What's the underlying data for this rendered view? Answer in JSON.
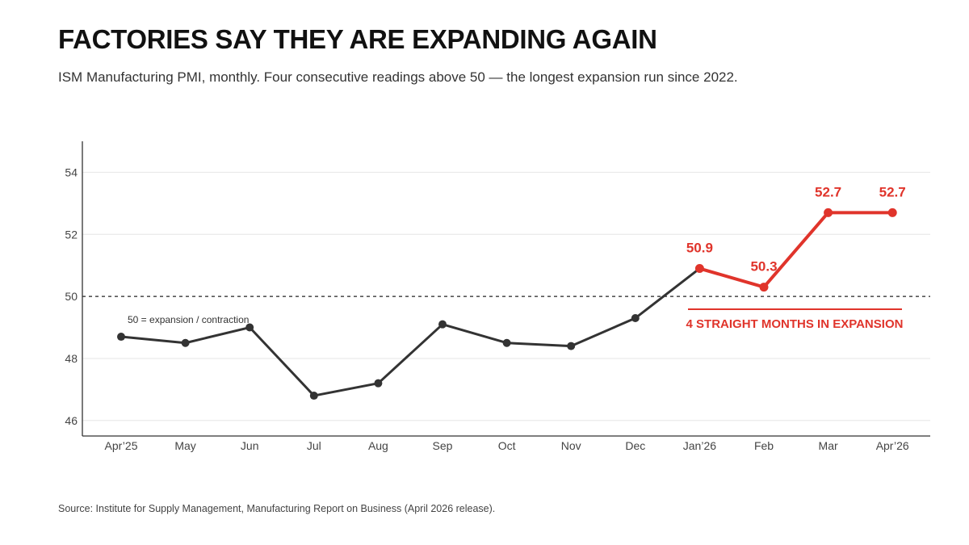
{
  "header": {
    "title": "FACTORIES SAY THEY ARE EXPANDING AGAIN",
    "subtitle": "ISM Manufacturing PMI, monthly. Four consecutive readings above 50 — the longest expansion run since 2022."
  },
  "footer": {
    "source": "Source: Institute for Supply Management, Manufacturing Report on Business (April 2026 release)."
  },
  "colors": {
    "base_line": "#333333",
    "highlight": "#e0342b",
    "grid": "#e6e6e6",
    "axis": "#333333"
  },
  "chart_data": {
    "type": "line",
    "categories": [
      "Apr’25",
      "May",
      "Jun",
      "Jul",
      "Aug",
      "Sep",
      "Oct",
      "Nov",
      "Dec",
      "Jan’26",
      "Feb",
      "Mar",
      "Apr’26"
    ],
    "values": [
      48.7,
      48.5,
      49.0,
      46.8,
      47.2,
      49.1,
      48.5,
      48.4,
      49.3,
      50.9,
      50.3,
      52.7,
      52.7
    ],
    "highlight_start_index": 9,
    "data_labels": [
      {
        "index": 9,
        "text": "50.9"
      },
      {
        "index": 10,
        "text": "50.3"
      },
      {
        "index": 11,
        "text": "52.7"
      },
      {
        "index": 12,
        "text": "52.7"
      }
    ],
    "ylim": [
      45.5,
      55
    ],
    "yticks": [
      46,
      48,
      50,
      52,
      54
    ],
    "grid": true,
    "reference_line": {
      "value": 50,
      "label": "50 = expansion / contraction",
      "style": "dashed"
    },
    "callout": {
      "text": "4 STRAIGHT MONTHS IN EXPANSION"
    },
    "title": "FACTORIES SAY THEY ARE EXPANDING AGAIN",
    "xlabel": "",
    "ylabel": ""
  }
}
